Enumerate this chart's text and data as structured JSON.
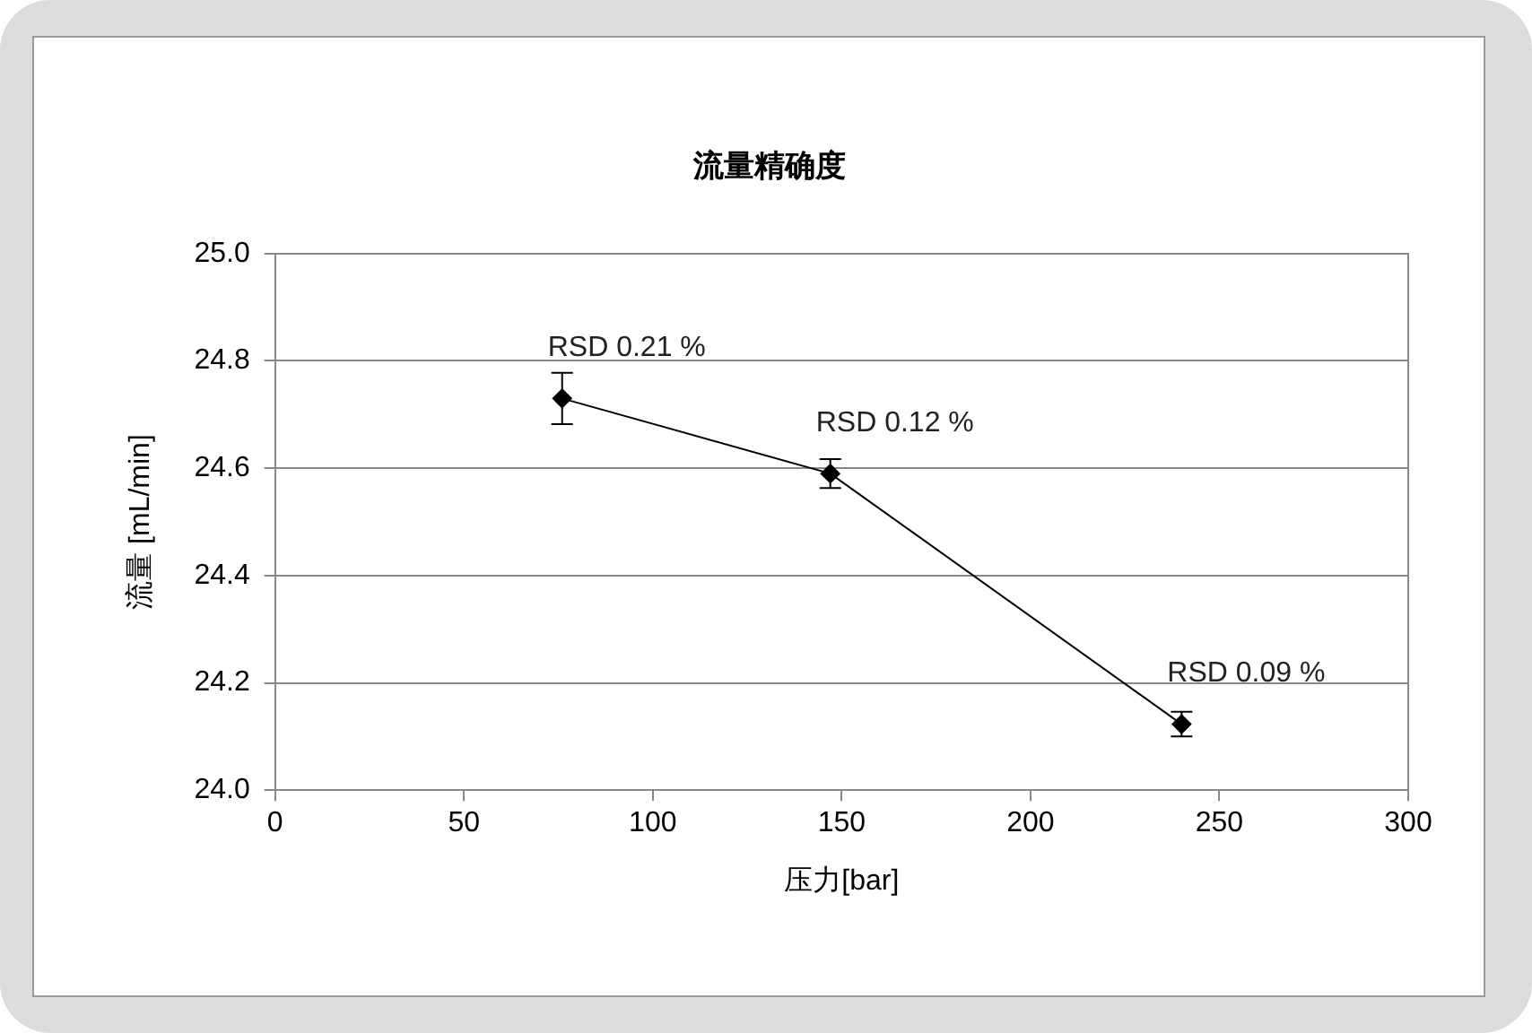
{
  "chart_data": {
    "type": "line",
    "title": "流量精确度",
    "xlabel": "压力[bar]",
    "ylabel": "流量 [mL/min]",
    "x": [
      76,
      147,
      240
    ],
    "series": [
      {
        "color": "#000000",
        "values": [
          24.73,
          24.59,
          24.123
        ],
        "errors": [
          0.048,
          0.027,
          0.023
        ]
      }
    ],
    "xlim": [
      0,
      300
    ],
    "xticks": [
      0,
      50,
      100,
      150,
      200,
      250,
      300
    ],
    "ylim": [
      24.0,
      25.0
    ],
    "yticks": [
      {
        "value": 24.0,
        "label": "24.0"
      },
      {
        "value": 24.2,
        "label": "24.2"
      },
      {
        "value": 24.4,
        "label": "24.4"
      },
      {
        "value": 24.6,
        "label": "24.6"
      },
      {
        "value": 24.8,
        "label": "24.8"
      },
      {
        "value": 25.0,
        "label": "25.0"
      }
    ],
    "grid": "y",
    "legend": false,
    "marker": "diamond",
    "line_style": "solid",
    "annotations": [
      {
        "text": "RSD 0.21 %",
        "x": 76,
        "y": 24.73
      },
      {
        "text": "RSD 0.12 %",
        "x": 147,
        "y": 24.59
      },
      {
        "text": "RSD 0.09 %",
        "x": 240,
        "y": 24.123
      }
    ]
  }
}
